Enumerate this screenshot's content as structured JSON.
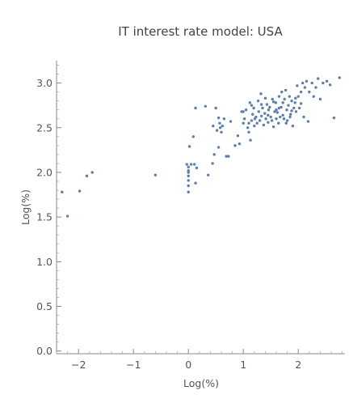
{
  "chart_data": {
    "type": "scatter",
    "title": "IT interest rate model: USA",
    "xlabel": "Log(%)",
    "ylabel": "Log(%)",
    "xlim": [
      -2.4,
      2.85
    ],
    "ylim": [
      -0.03,
      3.25
    ],
    "xticks": [
      -2,
      -1,
      0,
      1,
      2
    ],
    "xtick_labels": [
      "−2",
      "−1",
      "0",
      "1",
      "2"
    ],
    "yticks": [
      0.0,
      0.5,
      1.0,
      1.5,
      2.0,
      2.5,
      3.0
    ],
    "ytick_labels": [
      "0.0",
      "0.5",
      "1.0",
      "1.5",
      "2.0",
      "2.5",
      "3.0"
    ],
    "grid": false,
    "point_color": "#5b7fae",
    "points": [
      [
        -2.3,
        1.78
      ],
      [
        -2.2,
        1.51
      ],
      [
        -1.98,
        1.79
      ],
      [
        -1.85,
        1.96
      ],
      [
        -1.75,
        2.0
      ],
      [
        -0.6,
        1.97
      ],
      [
        -0.03,
        2.09
      ],
      [
        0.0,
        2.06
      ],
      [
        0.0,
        2.02
      ],
      [
        0.0,
        2.0
      ],
      [
        0.0,
        1.96
      ],
      [
        0.0,
        1.91
      ],
      [
        0.0,
        1.85
      ],
      [
        0.0,
        1.78
      ],
      [
        0.02,
        2.29
      ],
      [
        0.05,
        2.09
      ],
      [
        0.09,
        2.4
      ],
      [
        0.11,
        2.09
      ],
      [
        0.13,
        1.88
      ],
      [
        0.13,
        2.72
      ],
      [
        0.15,
        2.05
      ],
      [
        0.31,
        2.74
      ],
      [
        0.36,
        1.97
      ],
      [
        0.44,
        2.1
      ],
      [
        0.47,
        2.2
      ],
      [
        0.45,
        2.52
      ],
      [
        0.5,
        2.72
      ],
      [
        0.52,
        2.47
      ],
      [
        0.55,
        2.28
      ],
      [
        0.57,
        2.55
      ],
      [
        0.6,
        2.45
      ],
      [
        0.62,
        2.52
      ],
      [
        0.65,
        2.6
      ],
      [
        0.69,
        2.18
      ],
      [
        0.73,
        2.18
      ],
      [
        0.77,
        2.57
      ],
      [
        0.85,
        2.3
      ],
      [
        0.9,
        2.41
      ],
      [
        0.93,
        2.32
      ],
      [
        0.97,
        2.68
      ],
      [
        1.0,
        2.55
      ],
      [
        1.02,
        2.6
      ],
      [
        1.05,
        2.7
      ],
      [
        1.08,
        2.5
      ],
      [
        1.1,
        2.45
      ],
      [
        1.12,
        2.78
      ],
      [
        1.13,
        2.36
      ],
      [
        1.15,
        2.58
      ],
      [
        1.17,
        2.65
      ],
      [
        1.19,
        2.72
      ],
      [
        1.21,
        2.6
      ],
      [
        1.23,
        2.62
      ],
      [
        1.25,
        2.55
      ],
      [
        1.27,
        2.8
      ],
      [
        1.28,
        2.68
      ],
      [
        1.3,
        2.58
      ],
      [
        1.32,
        2.88
      ],
      [
        1.33,
        2.63
      ],
      [
        1.35,
        2.72
      ],
      [
        1.37,
        2.53
      ],
      [
        1.39,
        2.66
      ],
      [
        1.41,
        2.6
      ],
      [
        1.43,
        2.76
      ],
      [
        1.45,
        2.56
      ],
      [
        1.46,
        2.7
      ],
      [
        1.48,
        2.73
      ],
      [
        1.5,
        2.62
      ],
      [
        1.52,
        2.58
      ],
      [
        1.53,
        2.82
      ],
      [
        1.55,
        2.51
      ],
      [
        1.57,
        2.68
      ],
      [
        1.59,
        2.78
      ],
      [
        1.6,
        2.6
      ],
      [
        1.62,
        2.67
      ],
      [
        1.64,
        2.55
      ],
      [
        1.65,
        2.85
      ],
      [
        1.67,
        2.62
      ],
      [
        1.69,
        2.73
      ],
      [
        1.7,
        2.9
      ],
      [
        1.72,
        2.78
      ],
      [
        1.74,
        2.6
      ],
      [
        1.75,
        2.82
      ],
      [
        1.77,
        2.92
      ],
      [
        1.79,
        2.7
      ],
      [
        1.8,
        2.58
      ],
      [
        1.82,
        2.75
      ],
      [
        1.84,
        2.85
      ],
      [
        1.86,
        2.65
      ],
      [
        1.88,
        2.8
      ],
      [
        1.9,
        2.52
      ],
      [
        1.92,
        2.72
      ],
      [
        1.94,
        2.78
      ],
      [
        1.96,
        2.68
      ],
      [
        1.98,
        2.97
      ],
      [
        2.0,
        2.85
      ],
      [
        2.02,
        2.72
      ],
      [
        2.05,
        2.9
      ],
      [
        2.08,
        3.0
      ],
      [
        2.1,
        2.62
      ],
      [
        2.12,
        2.95
      ],
      [
        2.15,
        3.02
      ],
      [
        2.18,
        2.57
      ],
      [
        2.2,
        2.9
      ],
      [
        2.25,
        3.0
      ],
      [
        2.28,
        2.85
      ],
      [
        2.32,
        2.95
      ],
      [
        2.36,
        3.05
      ],
      [
        2.4,
        2.82
      ],
      [
        2.45,
        3.0
      ],
      [
        2.52,
        3.02
      ],
      [
        2.58,
        2.98
      ],
      [
        2.65,
        2.61
      ],
      [
        2.75,
        3.06
      ],
      [
        1.6,
        2.7
      ],
      [
        1.4,
        2.83
      ],
      [
        1.0,
        2.68
      ],
      [
        1.15,
        2.75
      ],
      [
        1.85,
        2.62
      ],
      [
        1.2,
        2.52
      ],
      [
        1.65,
        2.72
      ],
      [
        1.95,
        2.83
      ],
      [
        2.05,
        2.77
      ],
      [
        1.45,
        2.64
      ],
      [
        1.78,
        2.55
      ],
      [
        0.58,
        2.5
      ],
      [
        0.55,
        2.61
      ],
      [
        1.1,
        2.55
      ],
      [
        1.33,
        2.76
      ],
      [
        1.55,
        2.79
      ],
      [
        1.72,
        2.64
      ],
      [
        1.88,
        2.69
      ]
    ]
  }
}
